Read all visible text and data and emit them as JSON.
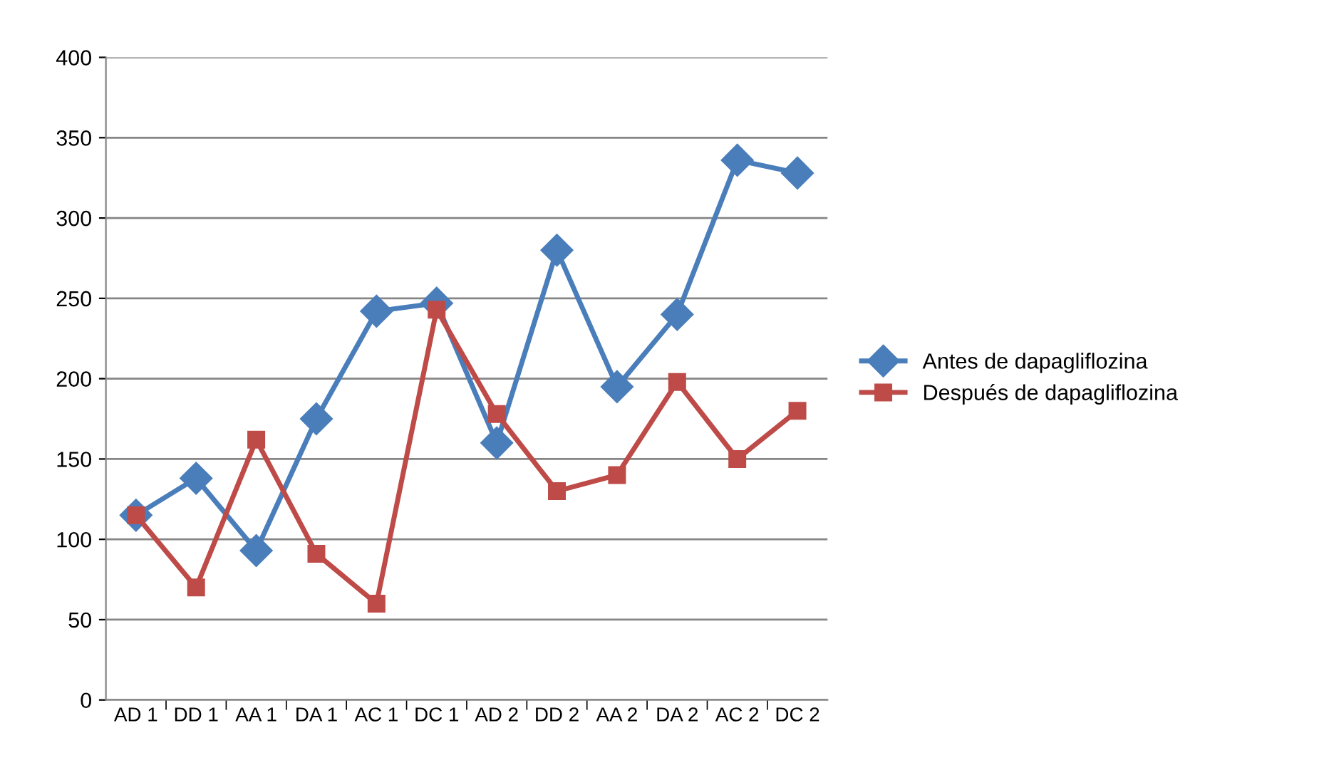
{
  "chart_data": {
    "type": "line",
    "categories": [
      "AD 1",
      "DD 1",
      "AA 1",
      "DA 1",
      "AC 1",
      "DC 1",
      "AD 2",
      "DD 2",
      "AA 2",
      "DA 2",
      "AC 2",
      "DC 2"
    ],
    "series": [
      {
        "name": "Antes de dapagliflozina",
        "color": "#4a7ebb",
        "marker": "diamond",
        "values": [
          115,
          138,
          93,
          175,
          242,
          247,
          160,
          280,
          195,
          240,
          336,
          328
        ]
      },
      {
        "name": "Después de dapagliflozina",
        "color": "#be4b48",
        "marker": "square",
        "values": [
          115,
          70,
          162,
          91,
          60,
          243,
          178,
          130,
          140,
          198,
          150,
          180
        ]
      }
    ],
    "ylim": [
      0,
      400
    ],
    "yticks": [
      0,
      50,
      100,
      150,
      200,
      250,
      300,
      350,
      400
    ],
    "grid": "y",
    "legend": "right",
    "line_style": "solid"
  }
}
